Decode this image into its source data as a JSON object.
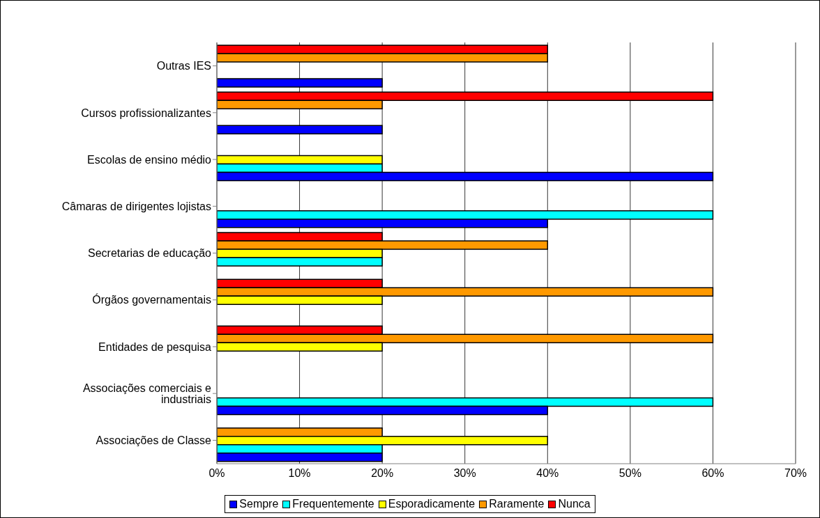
{
  "chart_data": {
    "type": "bar",
    "orientation": "horizontal",
    "categories": [
      "Outras IES",
      "Cursos profissionalizantes",
      "Escolas de ensino médio",
      "Câmaras de dirigentes lojistas",
      "Secretarias de educação",
      "Órgãos governamentais",
      "Entidades de pesquisa",
      "Associações comerciais e industriais",
      "Associações de Classe"
    ],
    "series": [
      {
        "name": "Sempre",
        "color": "#0000ff",
        "values": [
          20,
          20,
          60,
          40,
          null,
          null,
          null,
          40,
          20
        ]
      },
      {
        "name": "Frequentemente",
        "color": "#00ffff",
        "values": [
          null,
          null,
          20,
          60,
          20,
          null,
          null,
          60,
          20
        ]
      },
      {
        "name": "Esporadicamente",
        "color": "#ffff00",
        "values": [
          null,
          null,
          20,
          null,
          20,
          20,
          20,
          null,
          40
        ]
      },
      {
        "name": "Raramente",
        "color": "#ff9900",
        "values": [
          40,
          20,
          null,
          null,
          40,
          60,
          60,
          null,
          20
        ]
      },
      {
        "name": "Nunca",
        "color": "#ff0000",
        "values": [
          40,
          60,
          null,
          null,
          20,
          20,
          20,
          null,
          null
        ]
      }
    ],
    "xlim": [
      0,
      70
    ],
    "xticks": [
      {
        "value": 0,
        "label": "0%"
      },
      {
        "value": 10,
        "label": "10%"
      },
      {
        "value": 20,
        "label": "20%"
      },
      {
        "value": 30,
        "label": "30%"
      },
      {
        "value": 40,
        "label": "40%"
      },
      {
        "value": 50,
        "label": "50%"
      },
      {
        "value": 60,
        "label": "60%"
      },
      {
        "value": 70,
        "label": "70%"
      }
    ],
    "grid": "x",
    "legend": "bottom"
  }
}
